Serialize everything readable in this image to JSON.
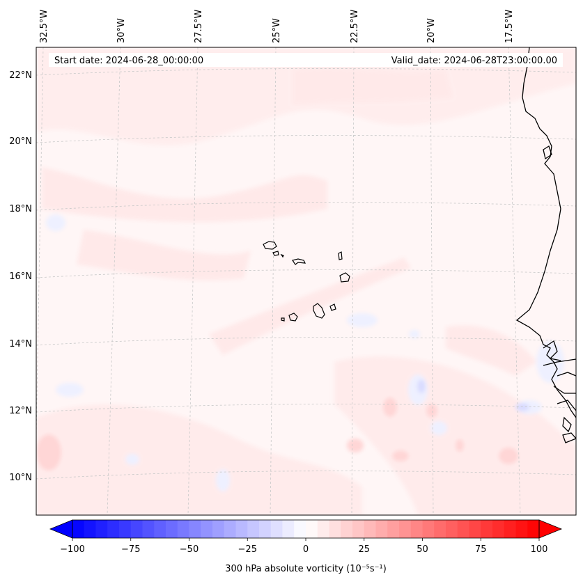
{
  "header": {
    "start_date": "Start date: 2024-06-28_00:00:00",
    "valid_date": "Valid_date: 2024-06-28T23:00:00.00"
  },
  "longitude_labels": [
    "32.5°W",
    "30°W",
    "27.5°W",
    "25°W",
    "22.5°W",
    "20°W",
    "17.5°W"
  ],
  "latitude_labels": [
    "22°N",
    "20°N",
    "18°N",
    "16°N",
    "14°N",
    "12°N",
    "10°N"
  ],
  "colorbar": {
    "tick_labels": [
      "−100",
      "−75",
      "−50",
      "−25",
      "0",
      "25",
      "50",
      "75",
      "100"
    ],
    "label": "300 hPa absolute vorticity (10⁻⁵s⁻¹)",
    "min": -100,
    "max": 100,
    "step": 5,
    "cmap": "bwr",
    "extend": "both"
  },
  "map": {
    "projection": "Lambert conformal",
    "extent": {
      "lon_min": -33,
      "lon_max": -15.5,
      "lat_min": 9,
      "lat_max": 23
    },
    "coastline_color": "#000000",
    "gridline_color": "#c8c8c8",
    "field_colors": {
      "weak_positive": "#ffecec",
      "moderate_positive": "#ffd2d2",
      "weak_negative": "#eef0ff",
      "moderate_negative": "#d9dcff"
    }
  }
}
